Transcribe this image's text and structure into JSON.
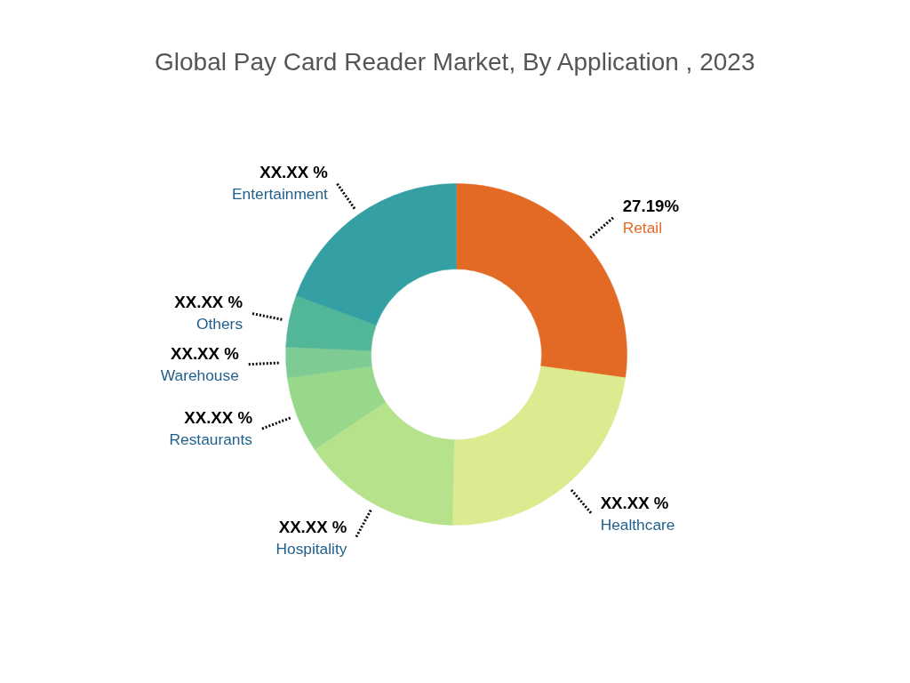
{
  "chart_data": {
    "type": "donut",
    "title": "Global Pay Card Reader Market, By Application , 2023",
    "categories": [
      "Retail",
      "Healthcare",
      "Hospitality",
      "Restaurants",
      "Warehouse",
      "Others",
      "Entertainment"
    ],
    "values": [
      27.19,
      23.2,
      15.2,
      7.2,
      2.9,
      4.9,
      19.41
    ],
    "colors": [
      "#e36a25",
      "#dceb8f",
      "#b5e28a",
      "#98d88a",
      "#7ecb93",
      "#52b799",
      "#34a0a4"
    ],
    "value_labels": [
      "27.19%",
      "XX.XX %",
      "XX.XX %",
      "XX.XX %",
      "XX.XX %",
      "XX.XX %",
      "XX.XX %"
    ]
  }
}
